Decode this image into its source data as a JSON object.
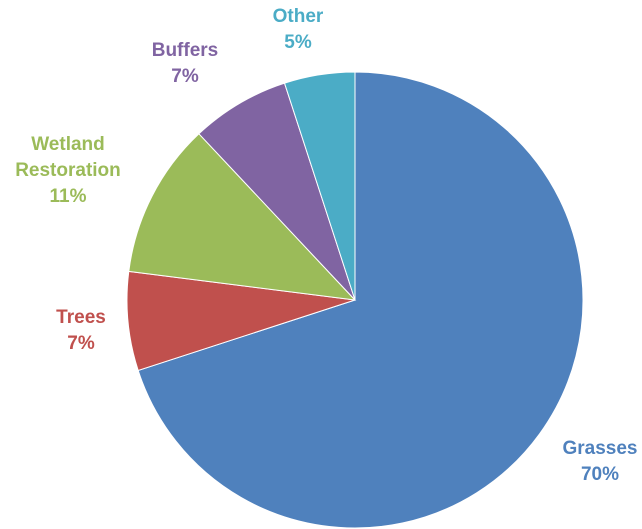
{
  "chart_data": {
    "type": "pie",
    "title": "",
    "start_angle_deg": 0,
    "direction": "clockwise",
    "slices": [
      {
        "label": "Grasses",
        "value": 70,
        "display": "70%",
        "color": "#4f81bd"
      },
      {
        "label": "Trees",
        "value": 7,
        "display": "7%",
        "color": "#c0504d"
      },
      {
        "label": "Wetland Restoration",
        "value": 11,
        "display": "11%",
        "color": "#9bbb59"
      },
      {
        "label": "Buffers",
        "value": 7,
        "display": "7%",
        "color": "#8064a2"
      },
      {
        "label": "Other",
        "value": 5,
        "display": "5%",
        "color": "#4bacc6"
      }
    ],
    "legend": "none",
    "data_labels": "category name and percentage, outside end"
  }
}
